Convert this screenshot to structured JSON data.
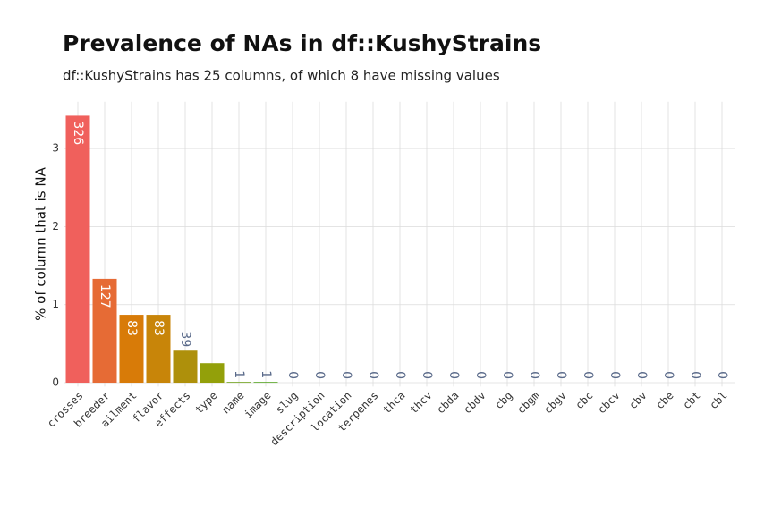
{
  "chart_data": {
    "type": "bar",
    "title": "Prevalence of NAs in df::KushyStrains",
    "subtitle": "df::KushyStrains has 25 columns, of which 8 have missing values",
    "y_label": "% of column that is NA",
    "categories": [
      "crosses",
      "breeder",
      "ailment",
      "flavor",
      "effects",
      "type",
      "name",
      "image",
      "slug",
      "description",
      "location",
      "terpenes",
      "thca",
      "thcv",
      "cbda",
      "cbdv",
      "cbg",
      "cbgm",
      "cbgv",
      "cbc",
      "cbcv",
      "cbv",
      "cbe",
      "cbt",
      "cbl"
    ],
    "values": [
      3.42,
      1.33,
      0.87,
      0.87,
      0.41,
      0.25,
      0.01,
      0.01,
      0,
      0,
      0,
      0,
      0,
      0,
      0,
      0,
      0,
      0,
      0,
      0,
      0,
      0,
      0,
      0,
      0
    ],
    "na_counts": [
      326,
      127,
      83,
      83,
      39,
      null,
      1,
      1,
      0,
      0,
      0,
      0,
      0,
      0,
      0,
      0,
      0,
      0,
      0,
      0,
      0,
      0,
      0,
      0,
      0
    ],
    "colors": [
      "#f0605c",
      "#e66b35",
      "#d87b08",
      "#c88509",
      "#ae900b",
      "#93a00a",
      "#77a628",
      "#5ea82e",
      null,
      null,
      null,
      null,
      null,
      null,
      null,
      null,
      null,
      null,
      null,
      null,
      null,
      null,
      null,
      null,
      null
    ],
    "ylim": [
      -0.05,
      3.6
    ],
    "yticks": [
      0,
      1,
      2,
      3
    ],
    "grid": true
  }
}
